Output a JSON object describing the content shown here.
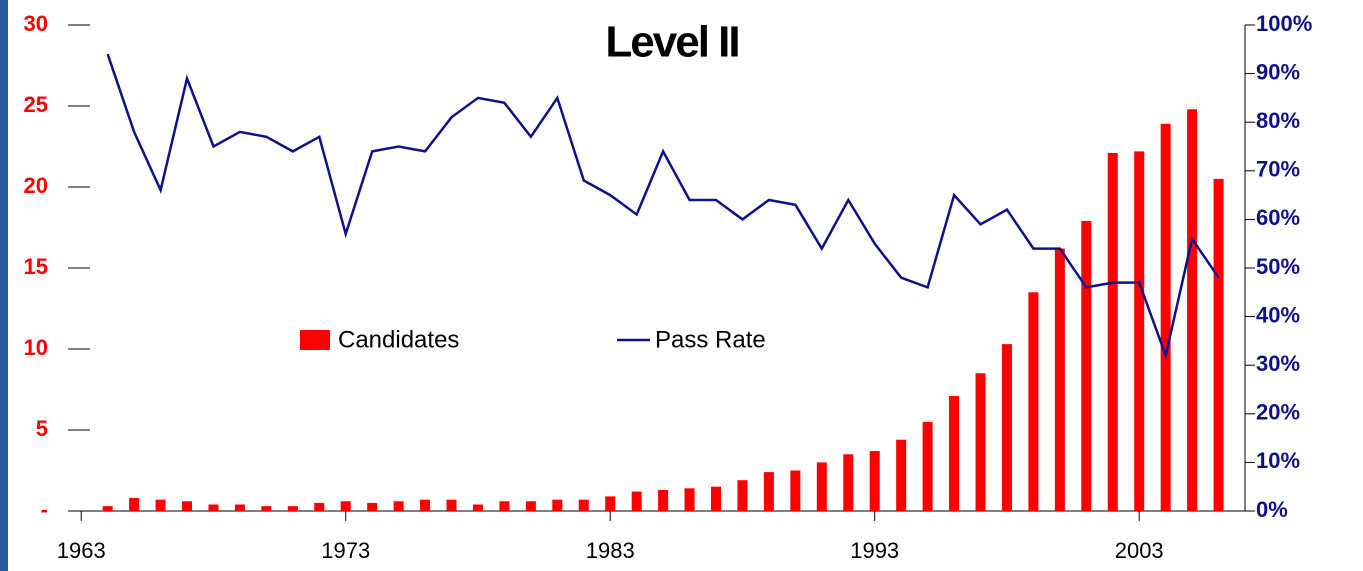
{
  "chart_data": {
    "type": "bar",
    "title": "Level II",
    "x": [
      1964,
      1965,
      1966,
      1967,
      1968,
      1969,
      1970,
      1971,
      1972,
      1973,
      1974,
      1975,
      1976,
      1977,
      1978,
      1979,
      1980,
      1981,
      1982,
      1983,
      1984,
      1985,
      1986,
      1987,
      1988,
      1989,
      1990,
      1991,
      1992,
      1993,
      1994,
      1995,
      1996,
      1997,
      1998,
      1999,
      2000,
      2001,
      2002,
      2003,
      2004,
      2005,
      2006
    ],
    "series": [
      {
        "name": "Candidates",
        "type": "bar",
        "color": "#ff0000",
        "values": [
          0.3,
          0.8,
          0.7,
          0.6,
          0.4,
          0.4,
          0.3,
          0.3,
          0.5,
          0.6,
          0.5,
          0.6,
          0.7,
          0.7,
          0.4,
          0.6,
          0.6,
          0.7,
          0.7,
          0.9,
          1.2,
          1.3,
          1.4,
          1.5,
          1.9,
          2.4,
          2.5,
          3.0,
          3.5,
          3.7,
          4.4,
          5.5,
          7.1,
          8.5,
          10.3,
          13.5,
          16.2,
          17.9,
          22.1,
          22.2,
          23.9,
          24.8,
          20.5
        ]
      },
      {
        "name": "Pass Rate",
        "type": "line",
        "axis": "y2",
        "color": "#10108a",
        "values": [
          94,
          78,
          66,
          89,
          75,
          78,
          77,
          74,
          77,
          57,
          74,
          75,
          74,
          81,
          85,
          84,
          77,
          85,
          68,
          65,
          61,
          74,
          64,
          64,
          60,
          64,
          63,
          54,
          64,
          55,
          48,
          46,
          65,
          59,
          62,
          54,
          54,
          46,
          47,
          47,
          32,
          56,
          48
        ]
      }
    ],
    "xlim": [
      1962.5,
      2007
    ],
    "xticks": [
      1963,
      1973,
      1983,
      1993,
      2003
    ],
    "ylim": [
      0,
      30
    ],
    "yticks": [
      {
        "value": 0,
        "label": "-"
      },
      5,
      10,
      15,
      20,
      25,
      30
    ],
    "y2lim": [
      0,
      100
    ],
    "y2ticks": [
      {
        "value": 0,
        "label": "0%"
      },
      {
        "value": 10,
        "label": "10%"
      },
      {
        "value": 20,
        "label": "20%"
      },
      {
        "value": 30,
        "label": "30%"
      },
      {
        "value": 40,
        "label": "40%"
      },
      {
        "value": 50,
        "label": "50%"
      },
      {
        "value": 60,
        "label": "60%"
      },
      {
        "value": 70,
        "label": "70%"
      },
      {
        "value": 80,
        "label": "80%"
      },
      {
        "value": 90,
        "label": "90%"
      },
      {
        "value": 100,
        "label": "100%"
      }
    ],
    "legend": "center",
    "grid": false
  }
}
